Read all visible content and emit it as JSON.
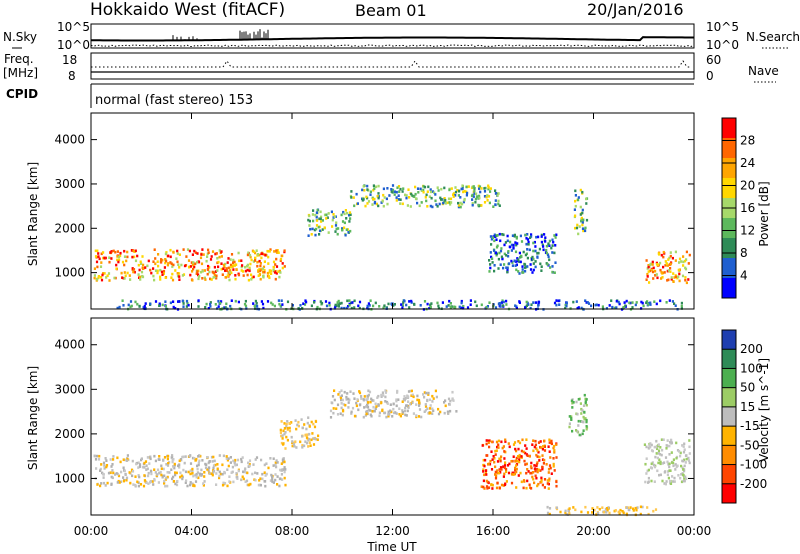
{
  "header": {
    "station": "Hokkaido West (fitACF)",
    "beam": "Beam 01",
    "date": "20/Jan/2016"
  },
  "strip": {
    "nsky_label": "N.Sky",
    "nsky_ticks": [
      "10^5",
      "10^0"
    ],
    "nsearch_label": "N.Search",
    "freq_label": [
      "Freq.",
      "[MHz]"
    ],
    "freq_ticks": [
      "18",
      "8"
    ],
    "nave_label": "Nave",
    "nave_ticks": [
      "60",
      "0"
    ],
    "cpid_label": "CPID",
    "cpid_text": "normal (fast stereo) 153"
  },
  "chart_data": [
    {
      "type": "heatmap",
      "title": "",
      "xlabel": "",
      "ylabel": "Slant Range [km]",
      "colorbar_label": "Power [dB]",
      "colorbar_ticks": [
        4,
        8,
        12,
        16,
        20,
        24,
        28
      ],
      "colorbar_range": [
        0,
        32
      ],
      "colorbar_colors": [
        "#0000ff",
        "#1f5fd0",
        "#2e8b57",
        "#5cb85c",
        "#a6d96a",
        "#ffd700",
        "#ffa500",
        "#ff6600",
        "#ff0000"
      ],
      "xlim_hours": [
        0,
        24
      ],
      "ylim_km": [
        180,
        4600
      ],
      "ytick_values": [
        1000,
        2000,
        3000,
        4000
      ],
      "x_tick_labels": [
        "00:00",
        "04:00",
        "08:00",
        "12:00",
        "16:00",
        "20:00",
        "00:00"
      ],
      "echo_regions_hours_km": [
        {
          "t0": 0.1,
          "t1": 7.7,
          "r0": 850,
          "r1": 1550,
          "level": "high"
        },
        {
          "t0": 8.6,
          "t1": 10.3,
          "r0": 1850,
          "r1": 2450,
          "level": "med"
        },
        {
          "t0": 10.3,
          "t1": 16.3,
          "r0": 2500,
          "r1": 3000,
          "level": "med"
        },
        {
          "t0": 19.2,
          "t1": 19.7,
          "r0": 1900,
          "r1": 2900,
          "level": "med"
        },
        {
          "t0": 22.0,
          "t1": 23.8,
          "r0": 800,
          "r1": 1500,
          "level": "high"
        },
        {
          "t0": 15.8,
          "t1": 18.5,
          "r0": 1000,
          "r1": 1900,
          "level": "low"
        },
        {
          "t0": 1.0,
          "t1": 23.5,
          "r0": 200,
          "r1": 400,
          "level": "low"
        }
      ]
    },
    {
      "type": "heatmap",
      "title": "",
      "xlabel": "Time UT",
      "ylabel": "Slant Range [km]",
      "colorbar_label": "Velocity [m s^-1]",
      "colorbar_ticks": [
        200,
        100,
        50,
        15,
        -15,
        -50,
        -100,
        -200
      ],
      "colorbar_colors": [
        "#1f3fb0",
        "#2e8b57",
        "#4caf50",
        "#9ccc65",
        "#bdbdbd",
        "#ffb300",
        "#ff8c00",
        "#ff4500",
        "#ff0000"
      ],
      "xlim_hours": [
        0,
        24
      ],
      "ylim_km": [
        180,
        4600
      ],
      "ytick_values": [
        1000,
        2000,
        3000,
        4000
      ],
      "x_tick_labels": [
        "00:00",
        "04:00",
        "08:00",
        "12:00",
        "16:00",
        "20:00",
        "00:00"
      ],
      "echo_regions_hours_km": [
        {
          "t0": 0.1,
          "t1": 7.7,
          "r0": 850,
          "r1": 1550,
          "level": "grey"
        },
        {
          "t0": 7.5,
          "t1": 9.0,
          "r0": 1700,
          "r1": 2400,
          "level": "orange"
        },
        {
          "t0": 9.5,
          "t1": 14.5,
          "r0": 2400,
          "r1": 3000,
          "level": "grey"
        },
        {
          "t0": 15.5,
          "t1": 18.5,
          "r0": 800,
          "r1": 1900,
          "level": "red"
        },
        {
          "t0": 19.0,
          "t1": 19.7,
          "r0": 2000,
          "r1": 2900,
          "level": "green"
        },
        {
          "t0": 22.0,
          "t1": 23.8,
          "r0": 900,
          "r1": 1900,
          "level": "greygreen"
        },
        {
          "t0": 18.0,
          "t1": 22.5,
          "r0": 200,
          "r1": 400,
          "level": "orange"
        }
      ]
    }
  ]
}
